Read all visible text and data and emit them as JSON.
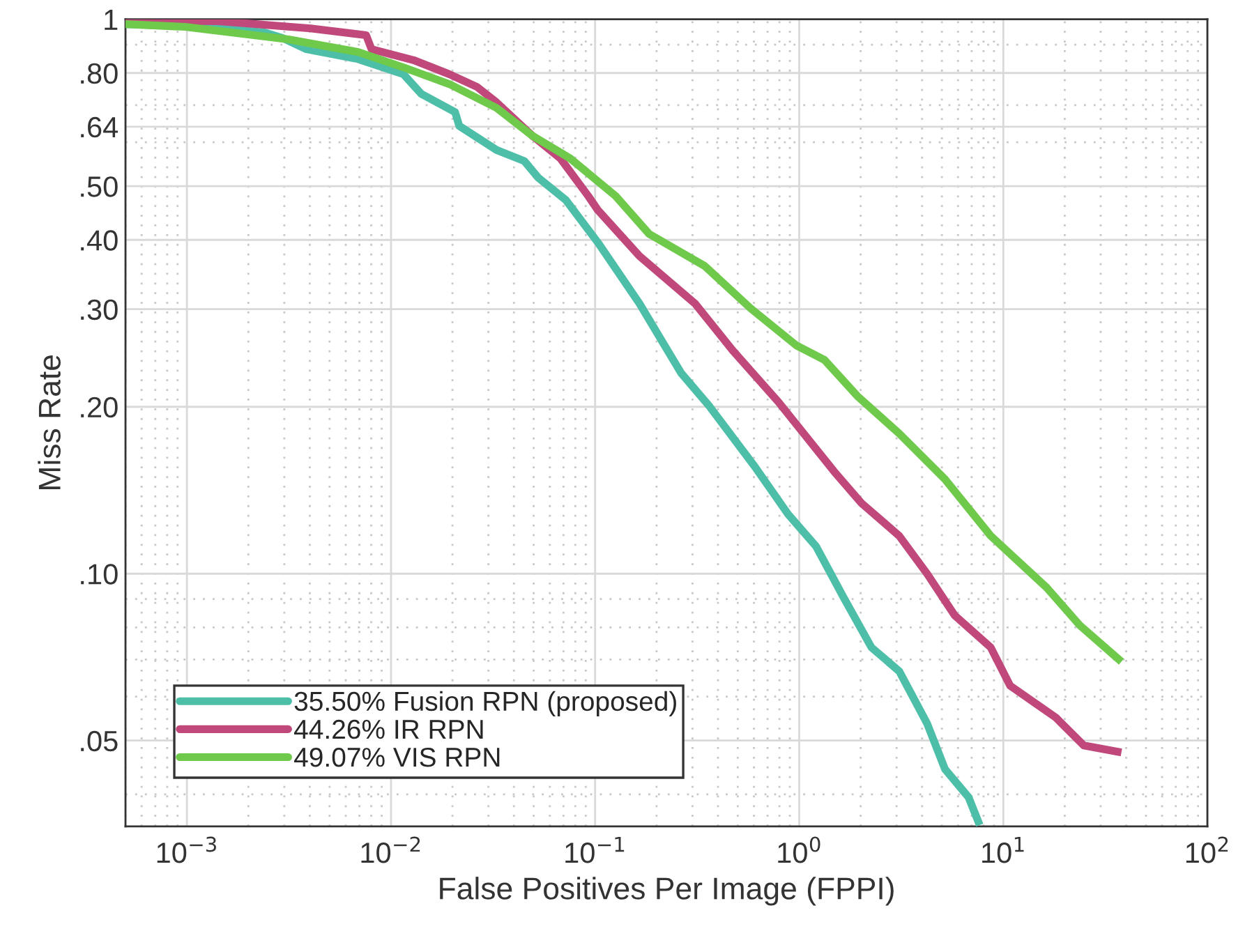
{
  "chart_data": {
    "type": "line",
    "xlabel": "False Positives Per Image (FPPI)",
    "ylabel": "Miss Rate",
    "log": "xy",
    "grid": true,
    "legend": "bottom left",
    "line_style": "solid",
    "xlim": [
      0.0005,
      100
    ],
    "ylim": [
      0.035,
      1
    ],
    "xticks": [
      {
        "value": 0.001,
        "label": "10$^{−3}$"
      },
      {
        "value": 0.01,
        "label": "10$^{−2}$"
      },
      {
        "value": 0.1,
        "label": "10$^{−1}$"
      },
      {
        "value": 1,
        "label": "10$^{0}$"
      },
      {
        "value": 10,
        "label": "10$^{1}$"
      },
      {
        "value": 100,
        "label": "10$^{2}$"
      }
    ],
    "yticks": [
      {
        "value": 0.05,
        "label": ".05"
      },
      {
        "value": 0.1,
        "label": ".10"
      },
      {
        "value": 0.2,
        "label": ".20"
      },
      {
        "value": 0.3,
        "label": ".30"
      },
      {
        "value": 0.4,
        "label": ".40"
      },
      {
        "value": 0.5,
        "label": ".50"
      },
      {
        "value": 0.64,
        "label": ".64"
      },
      {
        "value": 0.8,
        "label": ".80"
      },
      1
    ],
    "series": [
      {
        "name": "35.50% Fusion RPN (proposed)",
        "color": "#4dbfa8",
        "x": [
          0.0005,
          0.00098,
          0.0024,
          0.00294,
          0.00385,
          0.00687,
          0.0115,
          0.0141,
          0.0206,
          0.0216,
          0.0329,
          0.045,
          0.0526,
          0.0719,
          0.103,
          0.165,
          0.264,
          0.361,
          0.606,
          0.882,
          1.21,
          1.65,
          2.26,
          3.09,
          4.23,
          5.18,
          6.76,
          7.66
        ],
        "values": [
          0.98,
          0.975,
          0.947,
          0.925,
          0.883,
          0.848,
          0.796,
          0.733,
          0.68,
          0.642,
          0.581,
          0.555,
          0.518,
          0.472,
          0.396,
          0.307,
          0.23,
          0.201,
          0.156,
          0.128,
          0.112,
          0.0906,
          0.0736,
          0.0667,
          0.0537,
          0.0444,
          0.0395,
          0.0352
        ]
      },
      {
        "name": "44.26% IR RPN",
        "color": "#c0487a",
        "x": [
          0.0005,
          0.00143,
          0.00403,
          0.00755,
          0.00803,
          0.0129,
          0.0193,
          0.0264,
          0.0329,
          0.0494,
          0.0676,
          0.0925,
          0.103,
          0.165,
          0.309,
          0.471,
          0.791,
          1.48,
          2.02,
          3.09,
          4.23,
          5.78,
          8.68,
          10.8,
          18.1,
          24.8,
          37.9
        ],
        "values": [
          0.995,
          0.992,
          0.963,
          0.936,
          0.883,
          0.844,
          0.796,
          0.755,
          0.708,
          0.616,
          0.561,
          0.48,
          0.453,
          0.374,
          0.307,
          0.253,
          0.204,
          0.153,
          0.134,
          0.117,
          0.1,
          0.0841,
          0.0736,
          0.0628,
          0.055,
          0.049,
          0.0476
        ]
      },
      {
        "name": "49.07% VIS RPN",
        "color": "#6fc94a",
        "x": [
          0.0005,
          0.00098,
          0.00314,
          0.00687,
          0.0115,
          0.0193,
          0.0329,
          0.0494,
          0.0755,
          0.126,
          0.184,
          0.344,
          0.578,
          0.969,
          1.33,
          1.93,
          3.09,
          5.18,
          8.68,
          16.3,
          23.7,
          37.9
        ],
        "values": [
          0.98,
          0.969,
          0.92,
          0.873,
          0.819,
          0.764,
          0.692,
          0.616,
          0.561,
          0.48,
          0.41,
          0.359,
          0.301,
          0.258,
          0.243,
          0.209,
          0.179,
          0.148,
          0.117,
          0.0944,
          0.0807,
          0.0694
        ]
      }
    ]
  }
}
